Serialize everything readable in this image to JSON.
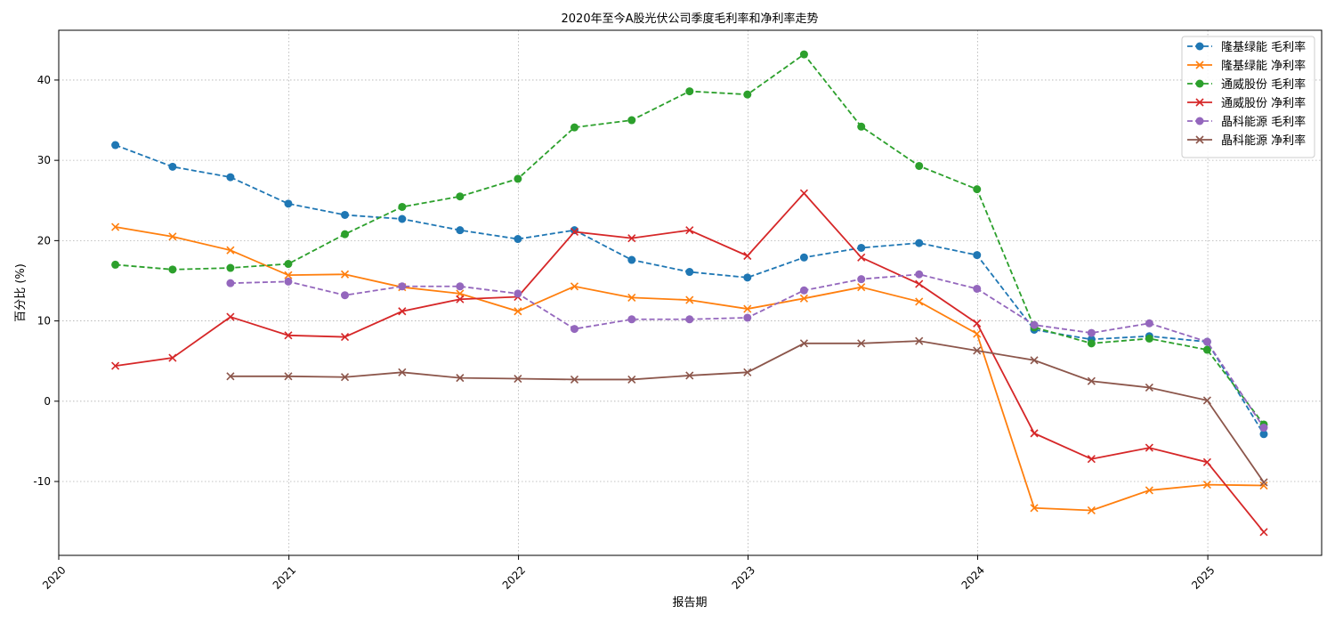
{
  "chart_data": {
    "type": "line",
    "title": "2020年至今A股光伏公司季度毛利率和净利率走势",
    "xlabel": "报告期",
    "ylabel": "百分比 (%)",
    "x_ticks": [
      "2020",
      "2021",
      "2022",
      "2023",
      "2024",
      "2025"
    ],
    "y_ticks": [
      -10,
      0,
      10,
      20,
      30,
      40
    ],
    "ylim": [
      -19.2,
      46.2
    ],
    "xlim": [
      "2020-01-01",
      "2025-07-01"
    ],
    "grid": true,
    "legend_position": "top-right",
    "x": [
      "2020-03-31",
      "2020-06-30",
      "2020-09-30",
      "2020-12-31",
      "2021-03-31",
      "2021-06-30",
      "2021-09-30",
      "2021-12-31",
      "2022-03-31",
      "2022-06-30",
      "2022-09-30",
      "2022-12-31",
      "2023-03-31",
      "2023-06-30",
      "2023-09-30",
      "2023-12-31",
      "2024-03-31",
      "2024-06-30",
      "2024-09-30",
      "2024-12-31",
      "2025-03-31"
    ],
    "series": [
      {
        "name": "隆基绿能 毛利率",
        "color": "#1f77b4",
        "dash": true,
        "marker": "circle",
        "values": [
          31.9,
          29.2,
          27.9,
          24.6,
          23.2,
          22.7,
          21.3,
          20.2,
          21.3,
          17.6,
          16.1,
          15.4,
          17.9,
          19.1,
          19.7,
          18.2,
          8.9,
          7.7,
          8.1,
          7.4,
          -4.1
        ]
      },
      {
        "name": "隆基绿能 净利率",
        "color": "#ff7f0e",
        "dash": false,
        "marker": "x",
        "values": [
          21.7,
          20.5,
          18.8,
          15.7,
          15.8,
          14.2,
          13.4,
          11.2,
          14.3,
          12.9,
          12.6,
          11.5,
          12.8,
          14.2,
          12.4,
          8.4,
          -13.3,
          -13.6,
          -11.1,
          -10.4,
          -10.5
        ]
      },
      {
        "name": "通威股份 毛利率",
        "color": "#2ca02c",
        "dash": true,
        "marker": "circle",
        "values": [
          17.0,
          16.4,
          16.6,
          17.1,
          20.8,
          24.2,
          25.5,
          27.7,
          34.1,
          35.0,
          38.6,
          38.2,
          43.2,
          34.2,
          29.3,
          26.4,
          9.2,
          7.2,
          7.8,
          6.4,
          -2.9
        ]
      },
      {
        "name": "通威股份 净利率",
        "color": "#d62728",
        "dash": false,
        "marker": "x",
        "values": [
          4.4,
          5.4,
          10.5,
          8.2,
          8.0,
          11.2,
          12.7,
          13.0,
          21.1,
          20.3,
          21.3,
          18.1,
          25.9,
          17.9,
          14.6,
          9.7,
          -4.0,
          -7.2,
          -5.8,
          -7.6,
          -16.3
        ]
      },
      {
        "name": "晶科能源 毛利率",
        "color": "#9467bd",
        "dash": true,
        "marker": "circle",
        "values": [
          null,
          null,
          14.7,
          14.9,
          13.2,
          14.3,
          14.3,
          13.4,
          9.0,
          10.2,
          10.2,
          10.4,
          13.8,
          15.2,
          15.8,
          14.0,
          9.5,
          8.5,
          9.7,
          7.4,
          -3.3
        ]
      },
      {
        "name": "晶科能源 净利率",
        "color": "#8c564b",
        "dash": false,
        "marker": "x",
        "values": [
          null,
          null,
          3.1,
          3.1,
          3.0,
          3.6,
          2.9,
          2.8,
          2.7,
          2.7,
          3.2,
          3.6,
          7.2,
          7.2,
          7.5,
          6.3,
          5.1,
          2.5,
          1.7,
          0.1,
          -10.1
        ]
      }
    ]
  }
}
